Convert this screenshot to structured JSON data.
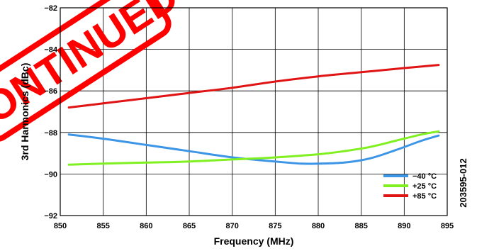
{
  "chart_data": {
    "type": "line",
    "xlabel": "Frequency (MHz)",
    "ylabel": "3rd Harmonics (dBc)",
    "xlim": [
      850,
      895
    ],
    "ylim": [
      -92,
      -82
    ],
    "x_ticks": [
      850,
      855,
      860,
      865,
      870,
      875,
      880,
      885,
      890,
      895
    ],
    "y_ticks": [
      -82,
      -84,
      -86,
      -88,
      -90,
      -92
    ],
    "grid": true,
    "legend_position": "bottom-right",
    "series": [
      {
        "name": "−40 °C",
        "color": "#3d95e6",
        "x": [
          851,
          855,
          860,
          865,
          870,
          875,
          878,
          880,
          883,
          886,
          889,
          892,
          894
        ],
        "y": [
          -88.1,
          -88.3,
          -88.6,
          -88.9,
          -89.2,
          -89.4,
          -89.5,
          -89.5,
          -89.45,
          -89.25,
          -88.85,
          -88.4,
          -88.15
        ]
      },
      {
        "name": "+25 °C",
        "color": "#80f020",
        "x": [
          851,
          855,
          860,
          865,
          870,
          875,
          880,
          883,
          886,
          889,
          892,
          894
        ],
        "y": [
          -89.55,
          -89.5,
          -89.45,
          -89.4,
          -89.3,
          -89.2,
          -89.05,
          -88.9,
          -88.7,
          -88.4,
          -88.1,
          -87.95
        ]
      },
      {
        "name": "+85 °C",
        "color": "#e01414",
        "x": [
          851,
          855,
          860,
          865,
          870,
          875,
          880,
          885,
          890,
          894
        ],
        "y": [
          -86.8,
          -86.6,
          -86.35,
          -86.1,
          -85.85,
          -85.55,
          -85.3,
          -85.1,
          -84.9,
          -84.75
        ]
      }
    ]
  },
  "figure_id": "203595-012",
  "watermark": {
    "text": "CONTINUED",
    "color": "#ff0000"
  }
}
